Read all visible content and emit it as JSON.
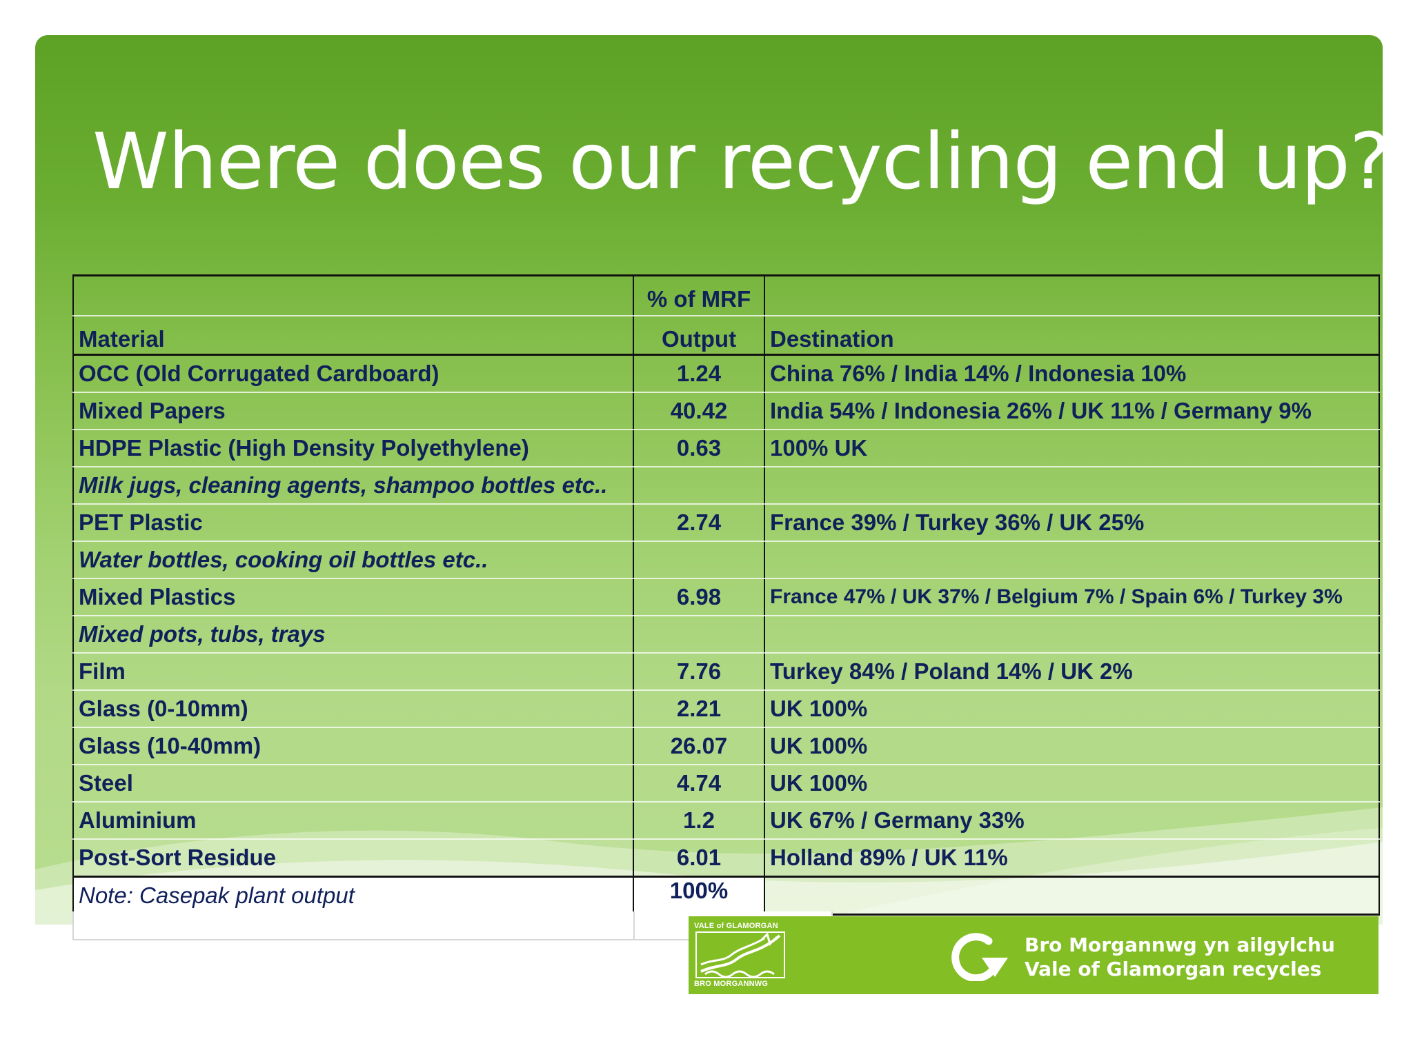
{
  "title": "Where does our recycling end up?",
  "colors": {
    "panel_green_top": "#5da125",
    "panel_green_bottom": "#b8dd90",
    "table_text": "#10205a",
    "logo_bar": "#84be25"
  },
  "table": {
    "headers": {
      "material": "Material",
      "output_line1": "% of MRF",
      "output_line2": "Output",
      "destination": "Destination"
    },
    "rows": [
      {
        "material": "OCC (Old Corrugated Cardboard)",
        "output": "1.24",
        "destination": "China 76% / India 14% / Indonesia 10%"
      },
      {
        "material": "Mixed Papers",
        "output": "40.42",
        "destination": "India 54% / Indonesia 26% / UK 11% / Germany 9%"
      },
      {
        "material": "HDPE Plastic (High Density Polyethylene)",
        "output": "0.63",
        "destination": "100% UK"
      },
      {
        "material": "Milk jugs, cleaning agents, shampoo bottles etc..",
        "output": "",
        "destination": ""
      },
      {
        "material": "PET Plastic",
        "output": "2.74",
        "destination": "France 39% / Turkey 36% / UK 25%"
      },
      {
        "material": "Water bottles, cooking oil bottles etc..",
        "output": "",
        "destination": ""
      },
      {
        "material": "Mixed Plastics",
        "output": "6.98",
        "destination": "France 47% / UK 37% / Belgium 7% / Spain 6% / Turkey 3%"
      },
      {
        "material": "Mixed pots, tubs, trays",
        "output": "",
        "destination": ""
      },
      {
        "material": "Film",
        "output": "7.76",
        "destination": "Turkey 84% / Poland 14% / UK 2%"
      },
      {
        "material": "Glass (0-10mm)",
        "output": "2.21",
        "destination": "UK 100%"
      },
      {
        "material": "Glass (10-40mm)",
        "output": "26.07",
        "destination": "UK 100%"
      },
      {
        "material": "Steel",
        "output": "4.74",
        "destination": "UK 100%"
      },
      {
        "material": "Aluminium",
        "output": "1.2",
        "destination": "UK 67% / Germany 33%"
      },
      {
        "material": "Post-Sort Residue",
        "output": "6.01",
        "destination": "Holland 89% / UK 11%"
      }
    ],
    "note": {
      "material": "Note: Casepak plant output",
      "output": "100%",
      "destination": ""
    }
  },
  "logo": {
    "council_top": "VALE of GLAMORGAN",
    "council_bottom": "BRO MORGANNWG",
    "slogan_welsh": "Bro Morgannwg yn ailgylchu",
    "slogan_english": "Vale of Glamorgan recycles",
    "recycle_icon": "recycle-arrow-icon",
    "emblem_icon": "vale-of-glamorgan-emblem-icon"
  }
}
